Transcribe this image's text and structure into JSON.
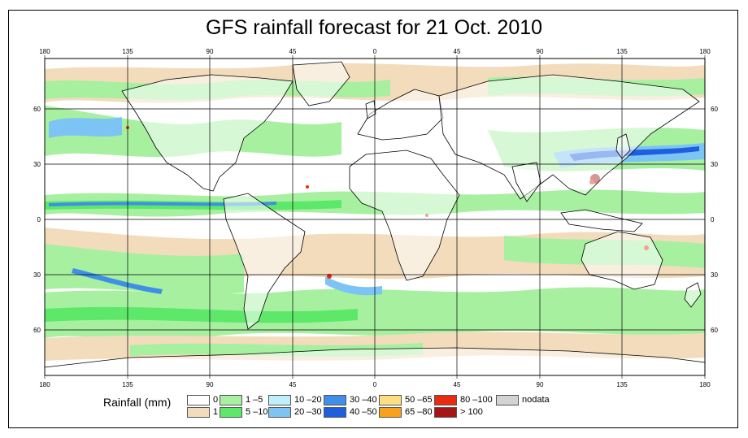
{
  "title": "GFS rainfall forecast for 21 Oct. 2010",
  "axes": {
    "lon_labels": [
      "180",
      "135",
      "90",
      "45",
      "0",
      "45",
      "90",
      "135",
      "180"
    ],
    "lat_labels": [
      "60",
      "30",
      "0",
      "30",
      "60"
    ]
  },
  "legend": {
    "title": "Rainfall (mm)",
    "items": [
      {
        "label": "0",
        "color": "#ffffff"
      },
      {
        "label": "1",
        "color": "#f2dcbc"
      },
      {
        "label": "1 –5",
        "color": "#a6f0a0"
      },
      {
        "label": "5 –10",
        "color": "#5ee86a"
      },
      {
        "label": "10 –20",
        "color": "#bfeffa"
      },
      {
        "label": "20 –30",
        "color": "#7cc4f4"
      },
      {
        "label": "30 –40",
        "color": "#3f8ee8"
      },
      {
        "label": "40 –50",
        "color": "#1e5fe0"
      },
      {
        "label": "50 –65",
        "color": "#fddf82"
      },
      {
        "label": "65 –80",
        "color": "#f9a11a"
      },
      {
        "label": "80 –100",
        "color": "#ec2a10"
      },
      {
        "label": "> 100",
        "color": "#a81414"
      },
      {
        "label": "nodata",
        "color": "#d3d3d3"
      }
    ]
  }
}
